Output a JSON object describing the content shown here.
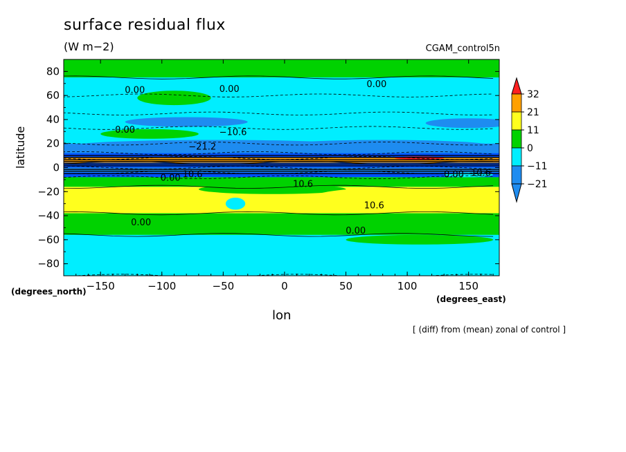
{
  "colors": {
    "c_le_m21": "#1e8cf0",
    "c_m21_m11": "#00e0ff",
    "c_m11_0": "#00d200",
    "c_0_11": "#00d200",
    "c_11_21": "#ffff1e",
    "c_21_32": "#ffa000",
    "c_ge_32": "#ff2020",
    "bg": "#ffffff"
  },
  "header": {
    "title": "surface residual flux",
    "units": "(W m−2)",
    "run": "CGAM_control5n"
  },
  "axes": {
    "xlabel": "lon",
    "ylabel": "latitude",
    "x_unit_note": "(degrees_east)",
    "y_unit_note": "(degrees_north)"
  },
  "footnote": "[ (diff) from (mean) zonal of control ]",
  "chart_data": {
    "type": "heatmap",
    "title": "surface residual flux",
    "subtitle": "(W m−2)",
    "xlabel": "lon",
    "ylabel": "latitude",
    "xlim": [
      -180,
      175
    ],
    "ylim": [
      -90,
      90
    ],
    "xticks": [
      -150,
      -100,
      -50,
      0,
      50,
      100,
      150
    ],
    "xtick_labels": [
      "−150",
      "−100",
      "−50",
      "0",
      "50",
      "100",
      "150"
    ],
    "yticks": [
      80,
      60,
      40,
      20,
      0,
      -20,
      -40,
      -60,
      -80
    ],
    "ytick_labels": [
      "80",
      "60",
      "40",
      "20",
      "0",
      "−20",
      "−40",
      "−60",
      "−80"
    ],
    "colorbar": {
      "levels": [
        -21,
        -11,
        0,
        11,
        21,
        32
      ],
      "labels": [
        "32",
        "21",
        "11",
        "0",
        "−11",
        "−21"
      ]
    },
    "zonal_bands": [
      {
        "lat": [
          75,
          90
        ],
        "value": 5
      },
      {
        "lat": [
          60,
          75
        ],
        "value": -5
      },
      {
        "lat": [
          45,
          60
        ],
        "value": -5
      },
      {
        "lat": [
          33,
          45
        ],
        "value": -8
      },
      {
        "lat": [
          20,
          33
        ],
        "value": -5
      },
      {
        "lat": [
          12,
          20
        ],
        "value": -15
      },
      {
        "lat": [
          8,
          12
        ],
        "value": -25
      },
      {
        "lat": [
          4,
          8
        ],
        "value": 25
      },
      {
        "lat": [
          0,
          4
        ],
        "value": -25
      },
      {
        "lat": [
          -4,
          0
        ],
        "value": -15
      },
      {
        "lat": [
          -8,
          -4
        ],
        "value": -25
      },
      {
        "lat": [
          -16,
          -8
        ],
        "value": 5
      },
      {
        "lat": [
          -38,
          -16
        ],
        "value": 15
      },
      {
        "lat": [
          -56,
          -38
        ],
        "value": 5
      },
      {
        "lat": [
          -90,
          -56
        ],
        "value": -5
      }
    ],
    "contour_labels": [
      {
        "text": "0.00",
        "lon": -122,
        "lat": 62
      },
      {
        "text": "0.00",
        "lon": -45,
        "lat": 63
      },
      {
        "text": "0.00",
        "lon": 75,
        "lat": 67
      },
      {
        "text": "0.00",
        "lon": -130,
        "lat": 29
      },
      {
        "text": "−10.6",
        "lon": -42,
        "lat": 27
      },
      {
        "text": "−21.2",
        "lon": -67,
        "lat": 15
      },
      {
        "text": "0.00",
        "lon": -93,
        "lat": -11
      },
      {
        "text": "10.6",
        "lon": -75,
        "lat": -8
      },
      {
        "text": "10.6",
        "lon": 15,
        "lat": -16
      },
      {
        "text": "10.6",
        "lon": 73,
        "lat": -34
      },
      {
        "text": "0.00",
        "lon": -117,
        "lat": -48
      },
      {
        "text": "0.00",
        "lon": 58,
        "lat": -55
      },
      {
        "text": "0.00",
        "lon": 138,
        "lat": -8
      },
      {
        "text": "10.6",
        "lon": 160,
        "lat": -7
      }
    ]
  }
}
